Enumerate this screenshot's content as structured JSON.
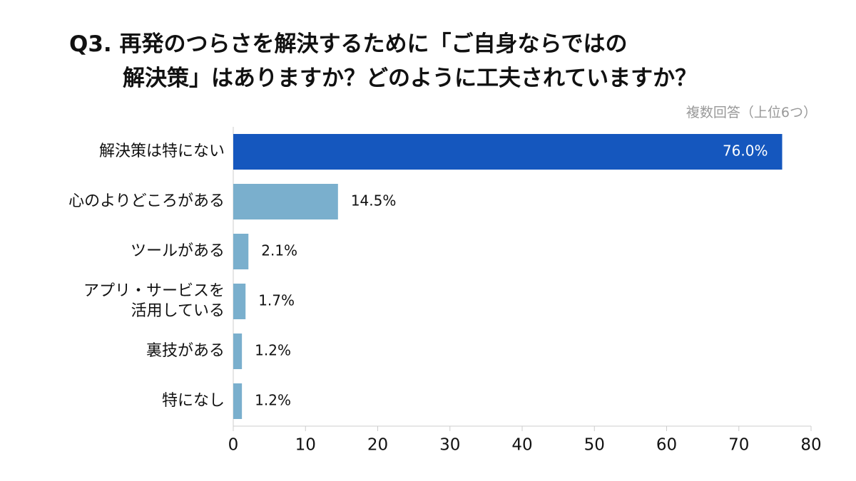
{
  "chart_data": {
    "type": "barh",
    "title": "Q3. 再発のつらさを解決するために「ご自身ならではの\n解決策」はありますか？どのように工夫されていますか？",
    "subtitle": "複数回答（上位6つ）",
    "categories": [
      "解決策は特にない",
      "心のよりどころがある",
      "ツールがある",
      "アプリ・サービスを\n活用している",
      "裏技がある",
      "特になし"
    ],
    "values": [
      76.0,
      14.5,
      2.1,
      1.7,
      1.2,
      1.2
    ],
    "value_labels": [
      "76.0%",
      "14.5%",
      "2.1%",
      "1.7%",
      "1.2%",
      "1.2%"
    ],
    "colors": [
      "#1557be",
      "#7aafcd",
      "#7aafcd",
      "#7aafcd",
      "#7aafcd",
      "#7aafcd"
    ],
    "xlim": [
      0,
      80
    ],
    "xticks": [
      0,
      10,
      20,
      30,
      40,
      50,
      60,
      70,
      80
    ]
  }
}
